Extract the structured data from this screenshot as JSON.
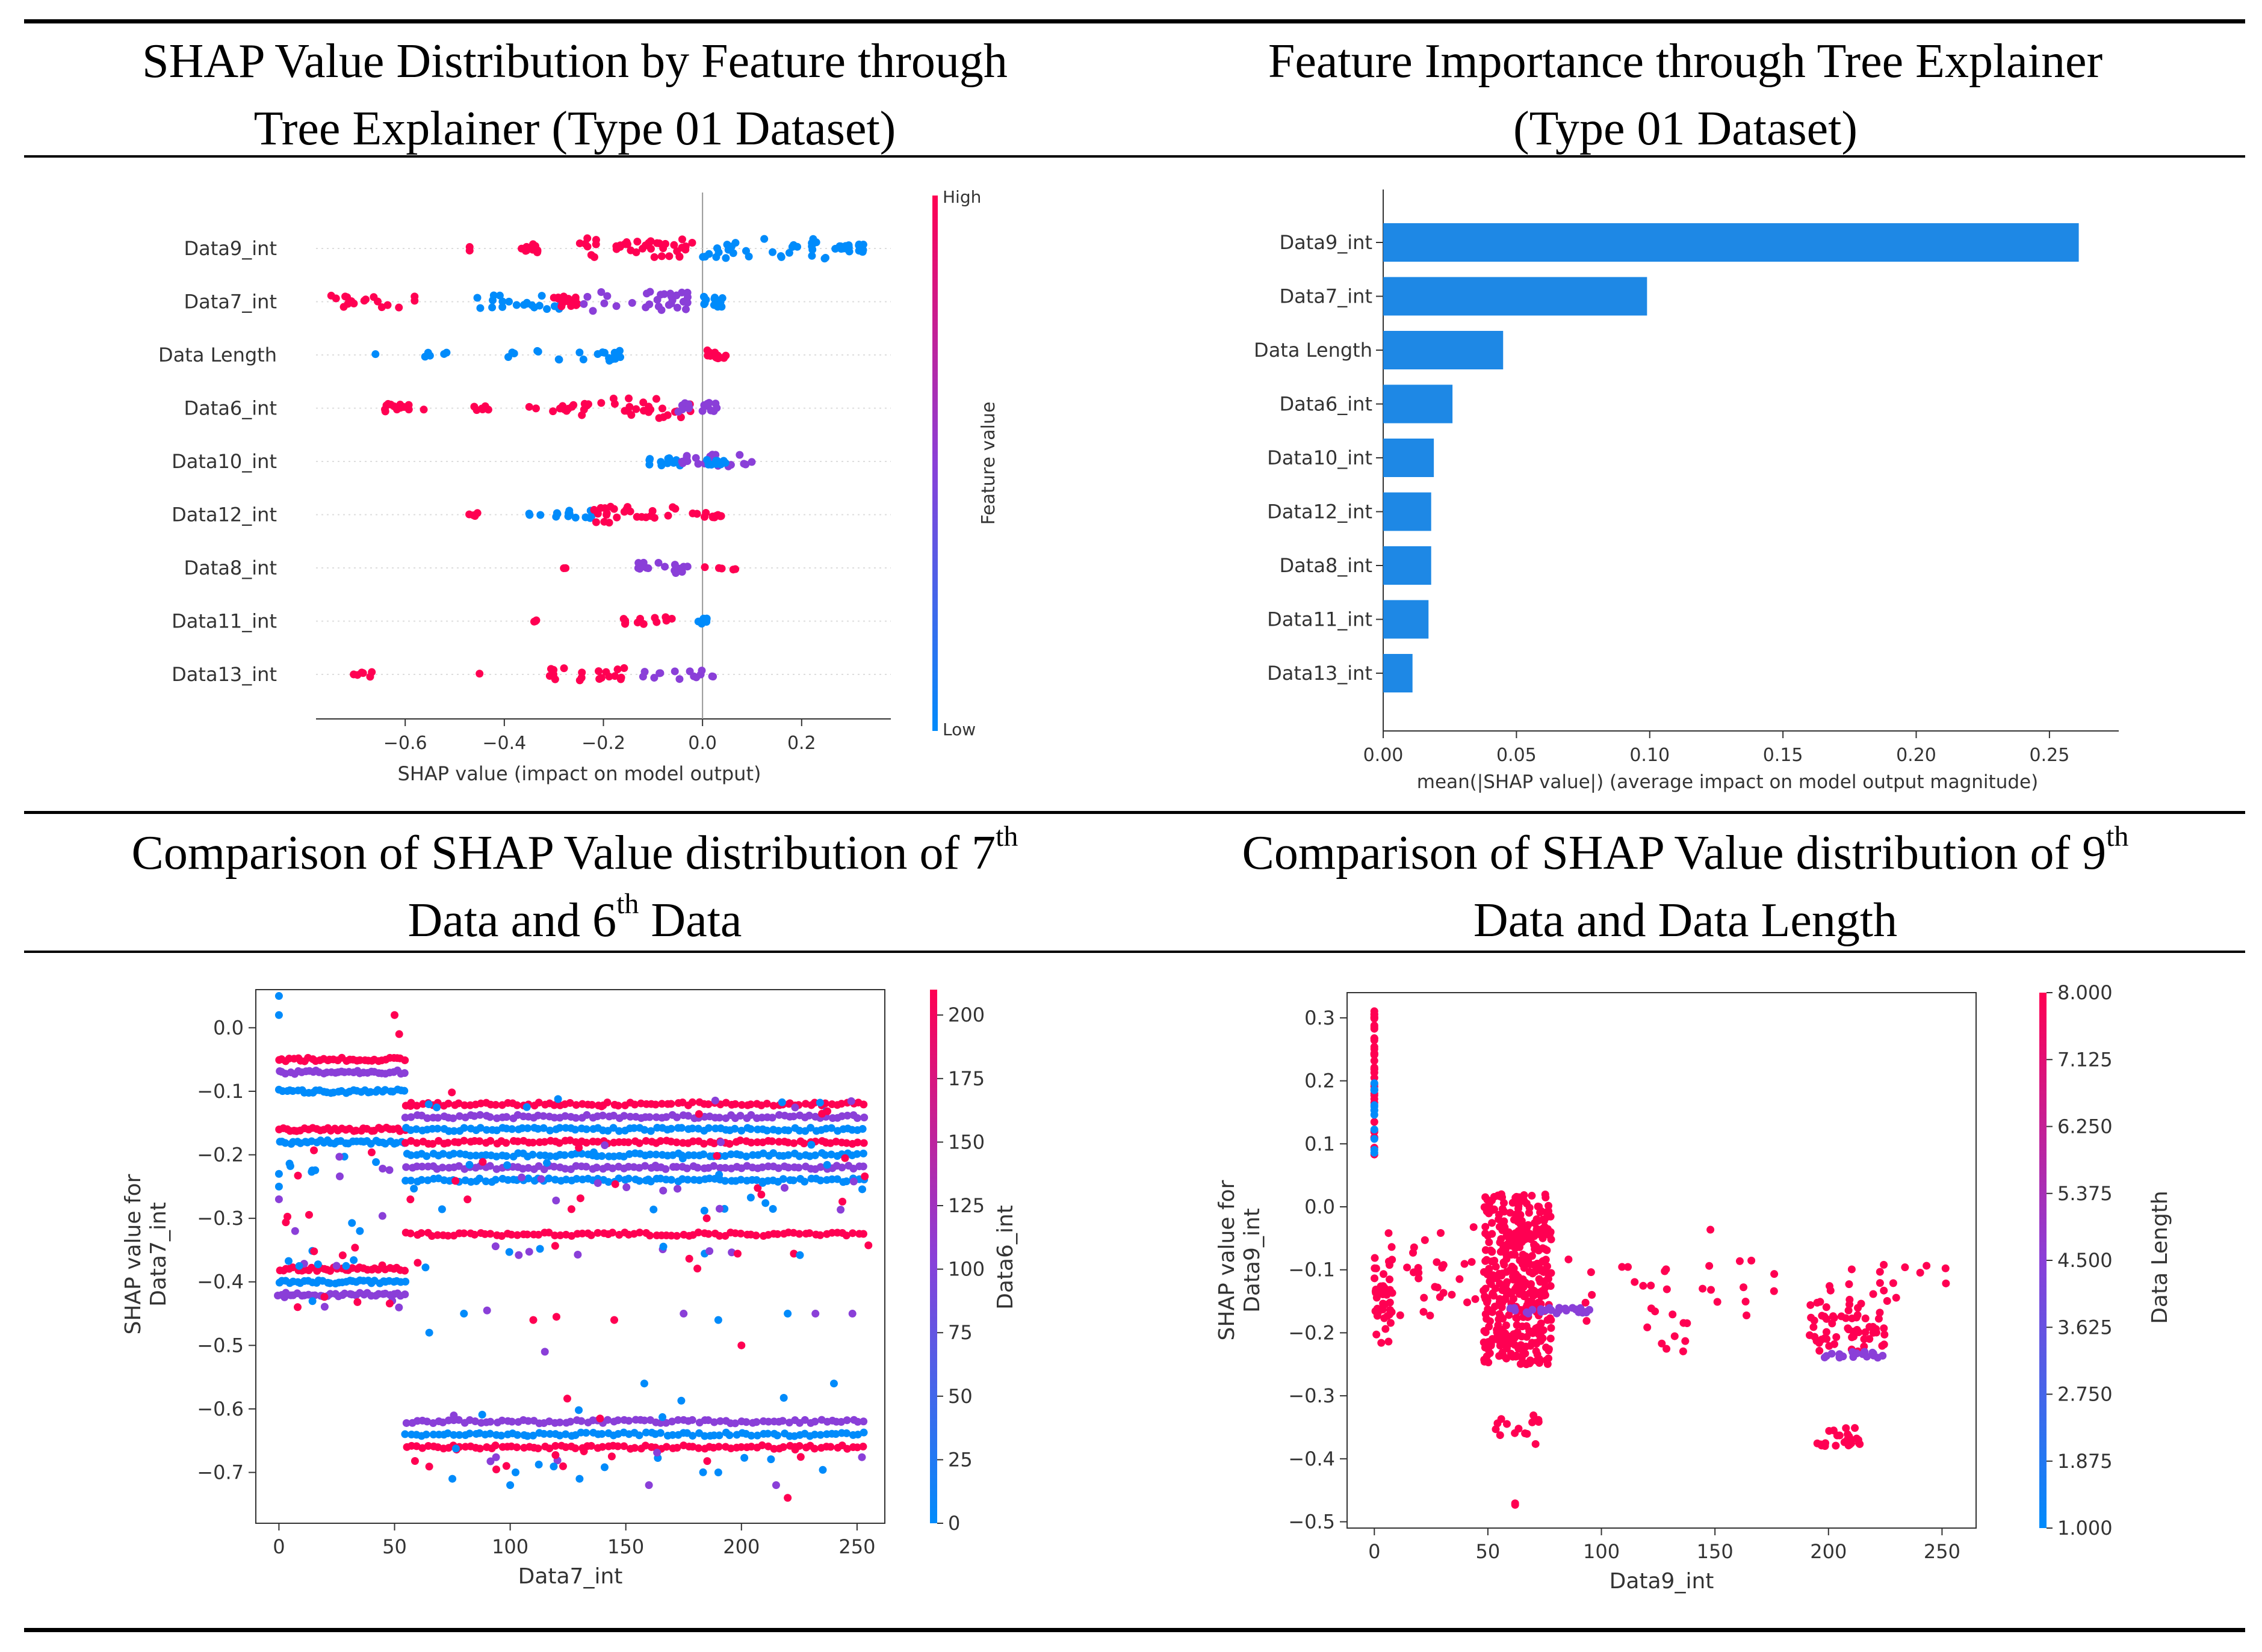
{
  "panels": {
    "p1": {
      "title_line1": "SHAP Value Distribution by Feature through",
      "title_line2": "Tree Explainer (Type 01 Dataset)"
    },
    "p2": {
      "title_line1": "Feature Importance through Tree Explainer",
      "title_line2": "(Type 01 Dataset)"
    },
    "p3": {
      "title_line1_pre": "Comparison of SHAP Value distribution of 7",
      "title_line1_sup": "th",
      "title_line2_pre": "Data and 6",
      "title_line2_sup": "th",
      "title_line2_post": " Data"
    },
    "p4": {
      "title_line1_pre": "Comparison of SHAP Value distribution of 9",
      "title_line1_sup": "th",
      "title_line2": "Data and Data Length"
    }
  },
  "colors": {
    "high": "#ff0052",
    "low": "#008bfb",
    "mid": "#8a3fd8",
    "bar": "#1e88e5"
  },
  "chart_data": [
    {
      "type": "scatter",
      "title": "SHAP Value Distribution by Feature through Tree Explainer (Type 01 Dataset)",
      "xlabel": "SHAP value (impact on model output)",
      "xlim": [
        -0.78,
        0.38
      ],
      "xticks": [
        "-0.6",
        "-0.4",
        "-0.2",
        "0.0",
        "0.2"
      ],
      "xtick_values": [
        -0.6,
        -0.4,
        -0.2,
        0.0,
        0.2
      ],
      "features": [
        "Data9_int",
        "Data7_int",
        "Data Length",
        "Data6_int",
        "Data10_int",
        "Data12_int",
        "Data8_int",
        "Data11_int",
        "Data13_int"
      ],
      "colorbar": {
        "label": "Feature value",
        "high": "High",
        "low": "Low"
      },
      "clusters": [
        [
          [
            -0.47,
            -0.47,
            "H",
            2
          ],
          [
            -0.37,
            -0.33,
            "H",
            14
          ],
          [
            -0.25,
            -0.02,
            "H",
            40
          ],
          [
            0.0,
            0.25,
            "L",
            30
          ],
          [
            0.25,
            0.31,
            "L",
            10
          ],
          [
            0.315,
            0.325,
            "L",
            12
          ]
        ],
        [
          [
            -0.75,
            -0.58,
            "H",
            18
          ],
          [
            -0.5,
            -0.28,
            "L",
            22
          ],
          [
            -0.3,
            -0.25,
            "H",
            16
          ],
          [
            -0.25,
            -0.02,
            "M",
            30
          ],
          [
            0.0,
            0.05,
            "L",
            16
          ]
        ],
        [
          [
            -0.66,
            -0.66,
            "L",
            1
          ],
          [
            -0.56,
            -0.51,
            "L",
            5
          ],
          [
            -0.4,
            -0.38,
            "L",
            3
          ],
          [
            -0.34,
            -0.14,
            "L",
            18
          ],
          [
            0.0,
            0.05,
            "H",
            14
          ]
        ],
        [
          [
            -0.65,
            -0.55,
            "H",
            14
          ],
          [
            -0.5,
            -0.41,
            "H",
            6
          ],
          [
            -0.36,
            -0.26,
            "H",
            10
          ],
          [
            -0.25,
            -0.02,
            "H",
            30
          ],
          [
            -0.05,
            0.03,
            "M",
            16
          ]
        ],
        [
          [
            -0.12,
            -0.04,
            "L",
            12
          ],
          [
            -0.05,
            0.1,
            "M",
            20
          ],
          [
            0.0,
            0.05,
            "L",
            10
          ]
        ],
        [
          [
            -0.49,
            -0.45,
            "H",
            4
          ],
          [
            -0.35,
            -0.32,
            "L",
            3
          ],
          [
            -0.3,
            -0.22,
            "L",
            12
          ],
          [
            -0.22,
            -0.05,
            "H",
            25
          ],
          [
            -0.02,
            0.04,
            "H",
            12
          ]
        ],
        [
          [
            -0.28,
            -0.27,
            "H",
            2
          ],
          [
            -0.13,
            -0.02,
            "M",
            16
          ],
          [
            0.0,
            0.07,
            "H",
            5
          ]
        ],
        [
          [
            -0.35,
            -0.33,
            "H",
            3
          ],
          [
            -0.16,
            -0.06,
            "H",
            12
          ],
          [
            -0.01,
            0.01,
            "L",
            8
          ]
        ],
        [
          [
            -0.72,
            -0.66,
            "H",
            6
          ],
          [
            -0.45,
            -0.45,
            "H",
            1
          ],
          [
            -0.32,
            -0.15,
            "H",
            20
          ],
          [
            -0.12,
            0.04,
            "M",
            14
          ]
        ]
      ]
    },
    {
      "type": "bar",
      "title": "Feature Importance through Tree Explainer (Type 01 Dataset)",
      "xlabel": "mean(|SHAP value|) (average impact on model output magnitude)",
      "categories": [
        "Data9_int",
        "Data7_int",
        "Data Length",
        "Data6_int",
        "Data10_int",
        "Data12_int",
        "Data8_int",
        "Data11_int",
        "Data13_int"
      ],
      "values": [
        0.261,
        0.099,
        0.045,
        0.026,
        0.019,
        0.018,
        0.018,
        0.017,
        0.011
      ],
      "xlim": [
        0.0,
        0.276
      ],
      "xticks": [
        "0.00",
        "0.05",
        "0.10",
        "0.15",
        "0.20",
        "0.25"
      ],
      "xtick_values": [
        0.0,
        0.05,
        0.1,
        0.15,
        0.2,
        0.25
      ]
    },
    {
      "type": "scatter",
      "title": "Comparison of SHAP Value distribution of 7th Data and 6th Data",
      "xlabel": "Data7_int",
      "ylabel_line1": "SHAP value for",
      "ylabel_line2": "Data7_int",
      "xlim": [
        -10,
        262
      ],
      "ylim": [
        -0.78,
        0.06
      ],
      "xticks": [
        "0",
        "50",
        "100",
        "150",
        "200",
        "250"
      ],
      "xtick_values": [
        0,
        50,
        100,
        150,
        200,
        250
      ],
      "yticks": [
        "0.0",
        "−0.1",
        "−0.2",
        "−0.3",
        "−0.4",
        "−0.5",
        "−0.6",
        "−0.7"
      ],
      "ytick_values": [
        0.0,
        -0.1,
        -0.2,
        -0.3,
        -0.4,
        -0.5,
        -0.6,
        -0.7
      ],
      "colorbar": {
        "label": "Data6_int",
        "min": 0,
        "max": 210,
        "ticks": [
          "0",
          "25",
          "50",
          "75",
          "100",
          "125",
          "150",
          "175",
          "200"
        ],
        "tick_values": [
          0,
          25,
          50,
          75,
          100,
          125,
          150,
          175,
          200
        ]
      },
      "bands": [
        [
          0,
          55,
          -0.05,
          "H"
        ],
        [
          0,
          55,
          -0.07,
          "M"
        ],
        [
          0,
          55,
          -0.1,
          "L"
        ],
        [
          0,
          55,
          -0.16,
          "H"
        ],
        [
          0,
          55,
          -0.18,
          "L"
        ],
        [
          0,
          55,
          -0.38,
          "H"
        ],
        [
          0,
          55,
          -0.4,
          "L"
        ],
        [
          0,
          55,
          -0.42,
          "M"
        ],
        [
          55,
          255,
          -0.12,
          "H"
        ],
        [
          55,
          255,
          -0.14,
          "M"
        ],
        [
          55,
          255,
          -0.16,
          "L"
        ],
        [
          55,
          255,
          -0.18,
          "H"
        ],
        [
          55,
          255,
          -0.2,
          "L"
        ],
        [
          55,
          255,
          -0.22,
          "M"
        ],
        [
          55,
          255,
          -0.24,
          "L"
        ],
        [
          55,
          255,
          -0.325,
          "H"
        ],
        [
          55,
          255,
          -0.62,
          "M"
        ],
        [
          55,
          255,
          -0.64,
          "L"
        ],
        [
          55,
          255,
          -0.66,
          "H"
        ]
      ],
      "scatter": [
        [
          0,
          0.05,
          "L"
        ],
        [
          0,
          0.02,
          "L"
        ],
        [
          0,
          -0.23,
          "L"
        ],
        [
          0,
          -0.25,
          "L"
        ],
        [
          0,
          -0.27,
          "M"
        ],
        [
          50,
          0.02,
          "H"
        ],
        [
          52,
          -0.01,
          "H"
        ],
        [
          7,
          -0.32,
          "M"
        ],
        [
          35,
          -0.32,
          "L"
        ],
        [
          60,
          -0.37,
          "H"
        ],
        [
          65,
          -0.48,
          "L"
        ],
        [
          80,
          -0.45,
          "L"
        ],
        [
          90,
          -0.445,
          "M"
        ],
        [
          110,
          -0.46,
          "H"
        ],
        [
          115,
          -0.51,
          "M"
        ],
        [
          120,
          -0.455,
          "H"
        ],
        [
          145,
          -0.46,
          "H"
        ],
        [
          158,
          -0.56,
          "L"
        ],
        [
          175,
          -0.45,
          "M"
        ],
        [
          190,
          -0.46,
          "L"
        ],
        [
          200,
          -0.5,
          "H"
        ],
        [
          220,
          -0.45,
          "L"
        ],
        [
          232,
          -0.45,
          "M"
        ],
        [
          240,
          -0.56,
          "L"
        ],
        [
          248,
          -0.45,
          "M"
        ],
        [
          100,
          -0.72,
          "L"
        ],
        [
          130,
          -0.71,
          "L"
        ],
        [
          160,
          -0.72,
          "M"
        ],
        [
          190,
          -0.7,
          "L"
        ],
        [
          220,
          -0.74,
          "H"
        ],
        [
          75,
          -0.71,
          "L"
        ],
        [
          215,
          -0.72,
          "M"
        ]
      ]
    },
    {
      "type": "scatter",
      "title": "Comparison of SHAP Value distribution of 9th Data and Data Length",
      "xlabel": "Data9_int",
      "ylabel_line1": "SHAP value for",
      "ylabel_line2": "Data9_int",
      "xlim": [
        -12,
        265
      ],
      "ylim": [
        -0.51,
        0.34
      ],
      "xticks": [
        "0",
        "50",
        "100",
        "150",
        "200",
        "250"
      ],
      "xtick_values": [
        0,
        50,
        100,
        150,
        200,
        250
      ],
      "yticks": [
        "0.3",
        "0.2",
        "0.1",
        "0.0",
        "−0.1",
        "−0.2",
        "−0.3",
        "−0.4",
        "−0.5"
      ],
      "ytick_values": [
        0.3,
        0.2,
        0.1,
        0.0,
        -0.1,
        -0.2,
        -0.3,
        -0.4,
        -0.5
      ],
      "colorbar": {
        "label": "Data Length",
        "min": 1,
        "max": 8,
        "ticks": [
          "8.000",
          "7.125",
          "6.250",
          "5.375",
          "4.500",
          "3.625",
          "2.750",
          "1.875",
          "1.000"
        ],
        "tick_values": [
          8,
          7.125,
          6.25,
          5.375,
          4.5,
          3.625,
          2.75,
          1.875,
          1.0
        ]
      },
      "clusters": [
        [
          0,
          0,
          0.08,
          0.32,
          "H",
          40
        ],
        [
          0,
          0,
          0.08,
          0.2,
          "L",
          12
        ],
        [
          0,
          8,
          -0.22,
          -0.08,
          "H",
          40
        ],
        [
          5,
          45,
          -0.18,
          -0.03,
          "H",
          30
        ],
        [
          48,
          78,
          -0.25,
          0.02,
          "H",
          420
        ],
        [
          55,
          95,
          -0.17,
          -0.16,
          "M",
          25
        ],
        [
          50,
          75,
          -0.38,
          -0.33,
          "H",
          14
        ],
        [
          62,
          62,
          -0.48,
          -0.47,
          "H",
          2
        ],
        [
          80,
          180,
          -0.2,
          -0.08,
          "H",
          30
        ],
        [
          190,
          225,
          -0.23,
          -0.15,
          "H",
          60
        ],
        [
          195,
          225,
          -0.24,
          -0.23,
          "M",
          18
        ],
        [
          195,
          215,
          -0.38,
          -0.35,
          "H",
          24
        ],
        [
          200,
          258,
          -0.15,
          -0.09,
          "H",
          18
        ],
        [
          125,
          145,
          -0.23,
          -0.2,
          "H",
          5
        ],
        [
          148,
          148,
          -0.04,
          -0.035,
          "H",
          1
        ]
      ]
    }
  ]
}
